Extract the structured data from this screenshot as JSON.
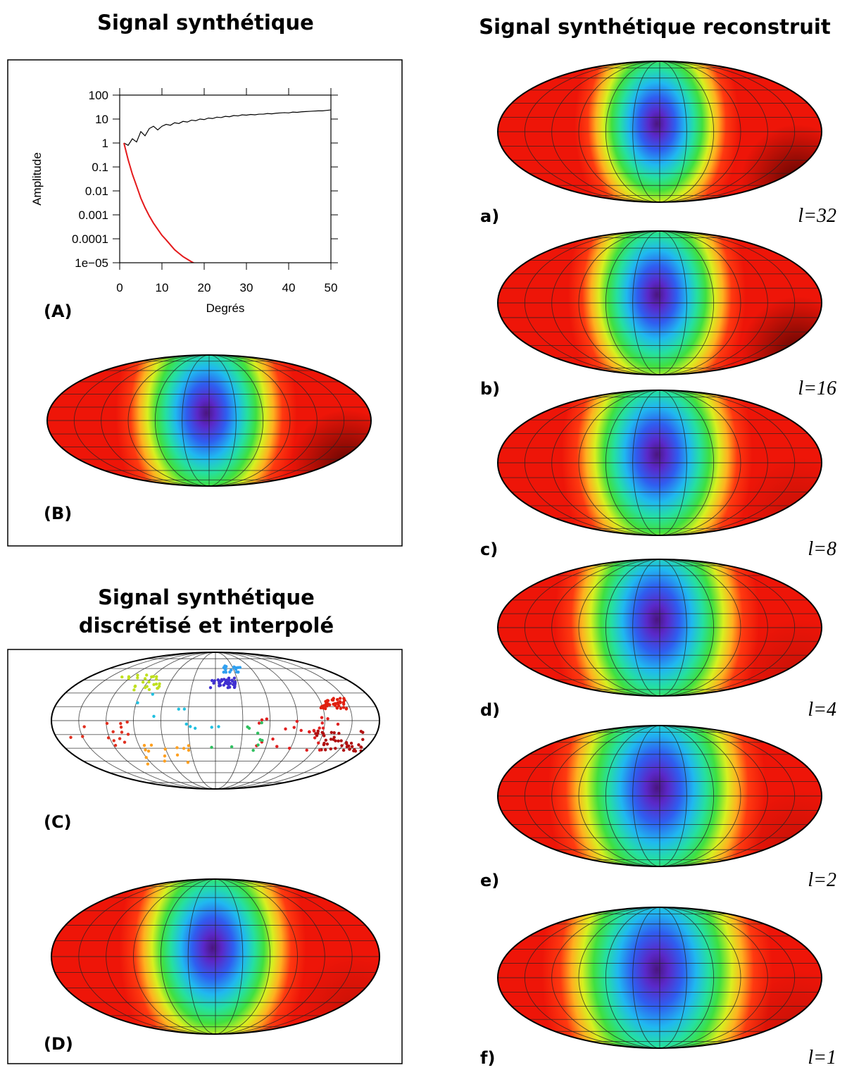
{
  "titles": {
    "left_top": "Signal synthétique",
    "left_bottom": [
      "Signal synthétique",
      "discrétisé et interpolé"
    ],
    "right": "Signal synthétique reconstruit"
  },
  "panels": {
    "A": "(A)",
    "B": "(B)",
    "C": "(C)",
    "D": "(D)"
  },
  "reconstructions": [
    {
      "label": "a)",
      "degree": "l=32"
    },
    {
      "label": "b)",
      "degree": "l=16"
    },
    {
      "label": "c)",
      "degree": "l=8"
    },
    {
      "label": "d)",
      "degree": "l=4"
    },
    {
      "label": "e)",
      "degree": "l=2"
    },
    {
      "label": "f)",
      "degree": "l=1"
    }
  ],
  "chart_data": {
    "type": "line",
    "xlabel": "Degrés",
    "ylabel": "Amplitude",
    "ylog": true,
    "xlim": [
      0,
      50
    ],
    "ylim": [
      1e-05,
      100
    ],
    "xticks": [
      0,
      10,
      20,
      30,
      40,
      50
    ],
    "yticks": [
      100,
      10,
      1,
      0.1,
      0.01,
      0.001,
      0.0001,
      {
        "value": 1e-05,
        "label": "1e−05"
      }
    ],
    "x": [
      1,
      2,
      3,
      4,
      5,
      6,
      7,
      8,
      9,
      10,
      11,
      12,
      13,
      14,
      15,
      16,
      17,
      18,
      19,
      20,
      21,
      22,
      23,
      24,
      25,
      26,
      27,
      28,
      29,
      30,
      31,
      32,
      33,
      34,
      35,
      36,
      37,
      38,
      39,
      40,
      41,
      42,
      43,
      44,
      45,
      46,
      47,
      48,
      49,
      50
    ],
    "series": [
      {
        "color": "#000000",
        "values": [
          1,
          0.8,
          1.5,
          1.1,
          3,
          2,
          4,
          5,
          3.5,
          5,
          6,
          5.5,
          7,
          6.5,
          8,
          7.5,
          9,
          8.5,
          10,
          9.5,
          11,
          10.5,
          12,
          11.5,
          13,
          12.5,
          14,
          13.5,
          15,
          14.5,
          15.5,
          15,
          16,
          16,
          17,
          16.5,
          17.5,
          18,
          18.5,
          18,
          19.5,
          19,
          20,
          20.5,
          21,
          21.5,
          22,
          22,
          23,
          24
        ]
      },
      {
        "color": "#e41a1c",
        "values": [
          1,
          0.2,
          0.05,
          0.016,
          0.005,
          0.002,
          0.0009,
          0.00045,
          0.00025,
          0.00014,
          9e-05,
          5.6e-05,
          3.5e-05,
          2.5e-05,
          1.8e-05,
          1.4e-05,
          1.1e-05,
          8.9e-06,
          null,
          null,
          null,
          null,
          null,
          null,
          null,
          null,
          null,
          null,
          null,
          null,
          null,
          null,
          null,
          null,
          null,
          null,
          null,
          null,
          null,
          null,
          null,
          null,
          null,
          null,
          null,
          null,
          null,
          null,
          null,
          null
        ]
      }
    ]
  }
}
